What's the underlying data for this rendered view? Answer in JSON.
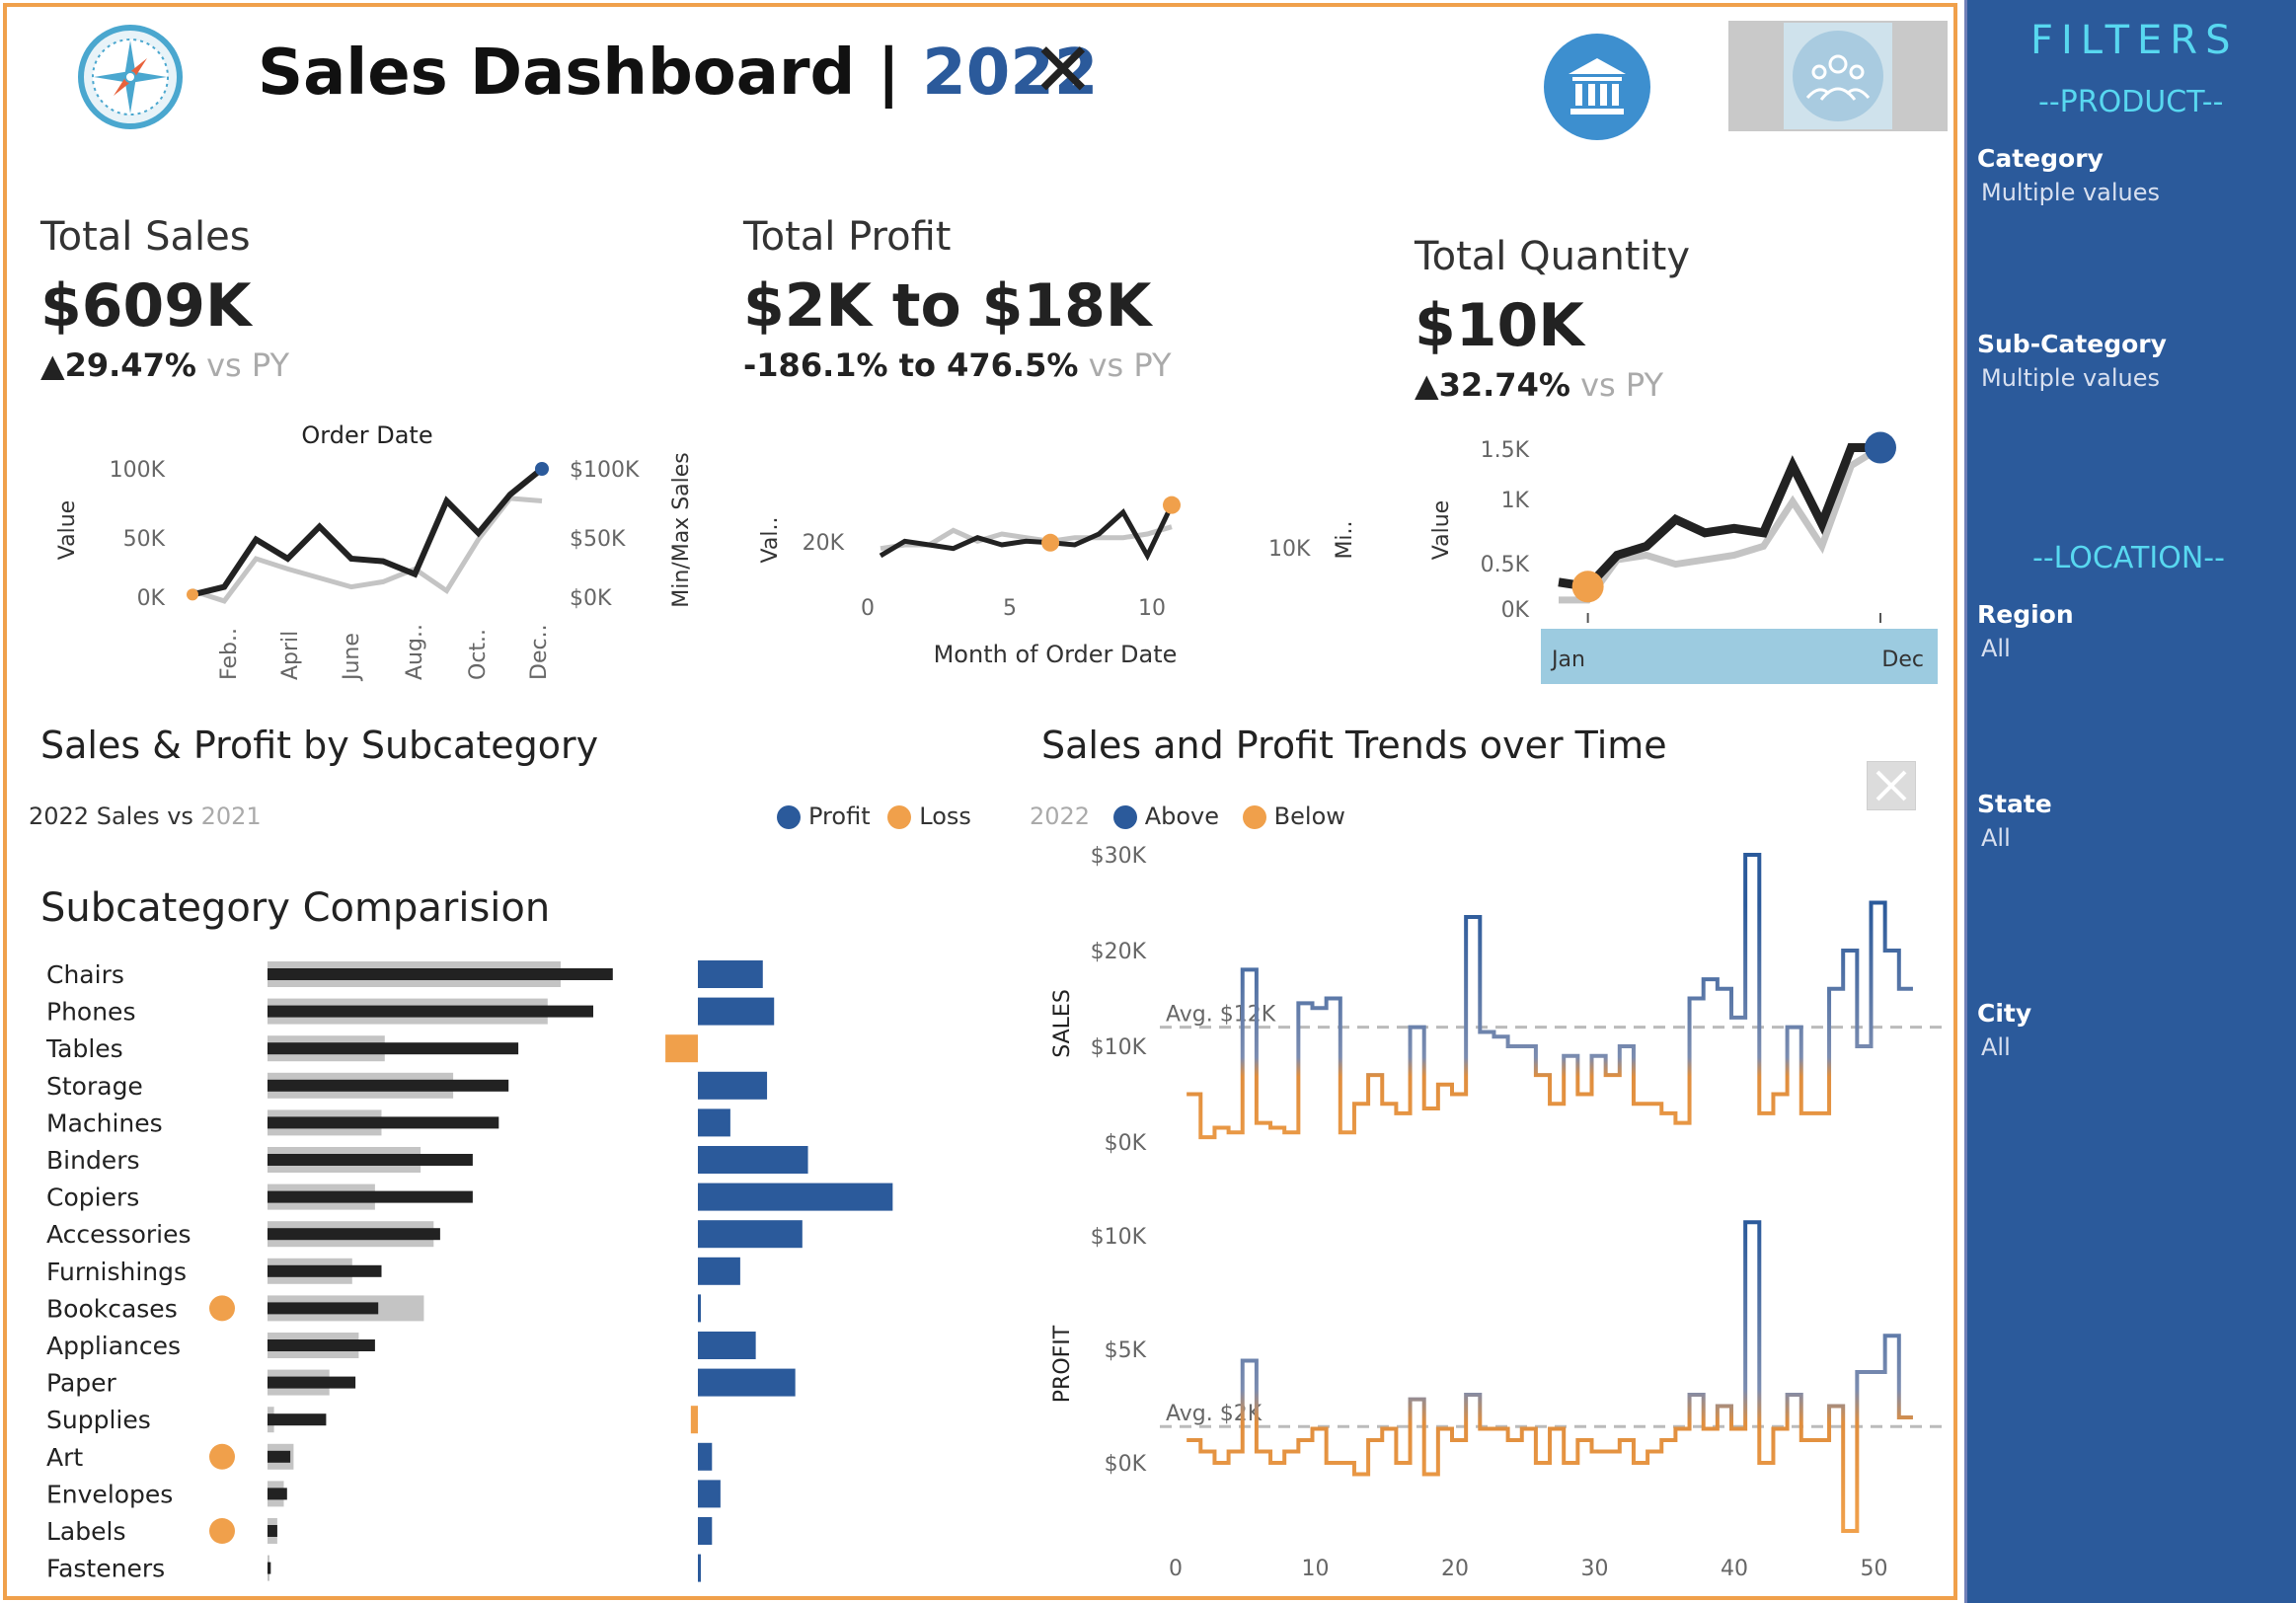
{
  "header": {
    "title_prefix": "Sales Dashboard | ",
    "title_year": "2022",
    "close_glyph": "✕"
  },
  "kpis": {
    "sales": {
      "label": "Total Sales",
      "value": "$609K",
      "delta": "▲29.47%",
      "vs": " vs PY"
    },
    "profit": {
      "label": "Total Profit",
      "value": "$2K to $18K",
      "delta": "-186.1% to 476.5%",
      "vs": " vs PY"
    },
    "quantity": {
      "label": "Total Quantity",
      "value": "$10K",
      "delta": "▲32.74%",
      "vs": " vs PY"
    }
  },
  "sparklines": {
    "sales": {
      "title": "Order Date",
      "ylabel": "Value",
      "ylabel_right": "Min/Max Sales",
      "yticks": [
        "100K",
        "50K",
        "0K"
      ],
      "yticks_right": [
        "$100K",
        "$50K",
        "$0K"
      ],
      "xticks": [
        "Feb..",
        "April",
        "June",
        "Aug..",
        "Oct..",
        "Dec.."
      ],
      "current": [
        2,
        8,
        45,
        30,
        55,
        30,
        28,
        18,
        75,
        50,
        80,
        100
      ],
      "prior": [
        5,
        -3,
        30,
        22,
        15,
        8,
        12,
        22,
        5,
        45,
        77,
        75
      ]
    },
    "profit": {
      "ylabel": "Val..",
      "ylabel_right": "Mi..",
      "xlabel": "Month of Order Date",
      "yticks": [
        "20K"
      ],
      "yticks_right": [
        "10K"
      ],
      "xticks": [
        "0",
        "5",
        "10"
      ],
      "current": [
        1.0,
        3.0,
        2.5,
        2.0,
        3.5,
        2.5,
        3.0,
        2.8,
        2.5,
        4.0,
        7.0,
        1.0,
        8.0
      ],
      "prior": [
        2.0,
        2.5,
        2.5,
        4.5,
        3.0,
        4.0,
        3.5,
        3.0,
        3.5,
        3.5,
        3.5,
        4.0,
        5.0
      ]
    },
    "quantity": {
      "ylabel": "Value",
      "yticks": [
        "1.5K",
        "1K",
        "0.5K",
        "0K"
      ],
      "xticks": [
        "Jan",
        "Dec"
      ],
      "current": [
        0.3,
        0.25,
        0.6,
        0.7,
        1.0,
        0.85,
        0.9,
        0.85,
        1.6,
        0.95,
        1.8,
        1.8
      ],
      "prior": [
        0.1,
        0.1,
        0.55,
        0.6,
        0.5,
        0.55,
        0.6,
        0.7,
        1.2,
        0.7,
        1.6,
        1.8
      ]
    }
  },
  "subcategory": {
    "section_title": "Sales & Profit by Subcategory",
    "subtitle_current": "2022 Sales vs ",
    "subtitle_prior": "2021",
    "legend_profit": "Profit",
    "legend_loss": "Loss",
    "comparison_title": "Subcategory Comparision"
  },
  "chart_data": [
    {
      "type": "bar",
      "categories": [
        "Chairs",
        "Phones",
        "Tables",
        "Storage",
        "Machines",
        "Binders",
        "Copiers",
        "Accessories",
        "Furnishings",
        "Bookcases",
        "Appliances",
        "Paper",
        "Supplies",
        "Art",
        "Envelopes",
        "Labels",
        "Fasteners"
      ],
      "series": [
        {
          "name": "2022",
          "values": [
            106,
            100,
            77,
            74,
            71,
            63,
            63,
            53,
            35,
            34,
            33,
            27,
            18,
            7,
            6,
            3,
            1
          ]
        },
        {
          "name": "2021",
          "values": [
            90,
            86,
            36,
            57,
            35,
            47,
            33,
            51,
            26,
            48,
            28,
            19,
            2,
            8,
            5,
            3,
            0.5
          ]
        }
      ],
      "loss_flag": [
        "Bookcases",
        "Art",
        "Labels"
      ]
    },
    {
      "type": "bar",
      "categories": [
        "Chairs",
        "Phones",
        "Tables",
        "Storage",
        "Machines",
        "Binders",
        "Copiers",
        "Accessories",
        "Furnishings",
        "Bookcases",
        "Appliances",
        "Paper",
        "Supplies",
        "Art",
        "Envelopes",
        "Labels",
        "Fasteners"
      ],
      "values": [
        4.6,
        5.4,
        -2.3,
        4.9,
        2.3,
        7.8,
        13.8,
        7.4,
        3.0,
        0.1,
        4.1,
        6.9,
        -0.5,
        1.0,
        1.6,
        1.0,
        0.1
      ],
      "legend": [
        "Profit",
        "Loss"
      ]
    },
    {
      "type": "line",
      "title": "Sales and Profit Trends over Time",
      "legend_year": "2022",
      "legend": [
        "Above",
        "Below"
      ],
      "x": [
        1,
        2,
        3,
        4,
        5,
        6,
        7,
        8,
        9,
        10,
        11,
        12,
        13,
        14,
        15,
        16,
        17,
        18,
        19,
        20,
        21,
        22,
        23,
        24,
        25,
        26,
        27,
        28,
        29,
        30,
        31,
        32,
        33,
        34,
        35,
        36,
        37,
        38,
        39,
        40,
        41,
        42,
        43,
        44,
        45,
        46,
        47,
        48,
        49,
        50,
        51,
        52
      ],
      "xticks": [
        "0",
        "10",
        "20",
        "30",
        "40",
        "50"
      ],
      "sales": {
        "ylabel": "SALES",
        "yticks": [
          "$30K",
          "$20K",
          "$10K",
          "$0K"
        ],
        "avg_label": "Avg. $12K",
        "avg": 12,
        "values": [
          5,
          0.5,
          1.5,
          1,
          18,
          2,
          1.5,
          1,
          14.5,
          14,
          15,
          1,
          4,
          7,
          4,
          3,
          12,
          3.5,
          6,
          5,
          23.5,
          11.5,
          11,
          10,
          10,
          7,
          4,
          9,
          5,
          9,
          7,
          10,
          4,
          4,
          3,
          2,
          15,
          17,
          16,
          13,
          30,
          3,
          5,
          12,
          3,
          3,
          16,
          20,
          10,
          25,
          20,
          16
        ]
      },
      "profit": {
        "ylabel": "PROFIT",
        "yticks": [
          "$10K",
          "$5K",
          "$0K"
        ],
        "avg_label": "Avg. $2K",
        "avg": 1.6,
        "values": [
          1,
          0.5,
          0,
          0.5,
          4.5,
          0.5,
          0,
          0.5,
          1,
          1.5,
          0,
          0,
          -0.5,
          1,
          1.5,
          0,
          2.8,
          -0.5,
          1.5,
          1,
          3,
          1.5,
          1.5,
          1,
          1.5,
          0,
          1.5,
          0,
          1,
          0.5,
          0.5,
          1,
          0,
          0.5,
          1,
          1.5,
          3,
          1.5,
          2.5,
          1.5,
          10.6,
          0,
          1.5,
          3,
          1,
          1,
          2.5,
          -3,
          4,
          4,
          5.6,
          2
        ]
      }
    }
  ],
  "trends": {
    "title": "Sales and Profit Trends over Time",
    "legend_year": "2022",
    "legend_above": "Above",
    "legend_below": "Below"
  },
  "filters": {
    "title": "FILTERS",
    "product_group": "--PRODUCT--",
    "location_group": "--LOCATION--",
    "items": [
      {
        "label": "Category",
        "value": "Multiple values"
      },
      {
        "label": "Sub-Category",
        "value": "Multiple values"
      },
      {
        "label": "Region",
        "value": "All"
      },
      {
        "label": "State",
        "value": "All"
      },
      {
        "label": "City",
        "value": "All"
      }
    ]
  },
  "colors": {
    "blue": "#2b5a9b",
    "orange": "#f0a04b",
    "black": "#222222",
    "gray": "#c4c4c4",
    "light_blue": "#9ccbe0"
  }
}
